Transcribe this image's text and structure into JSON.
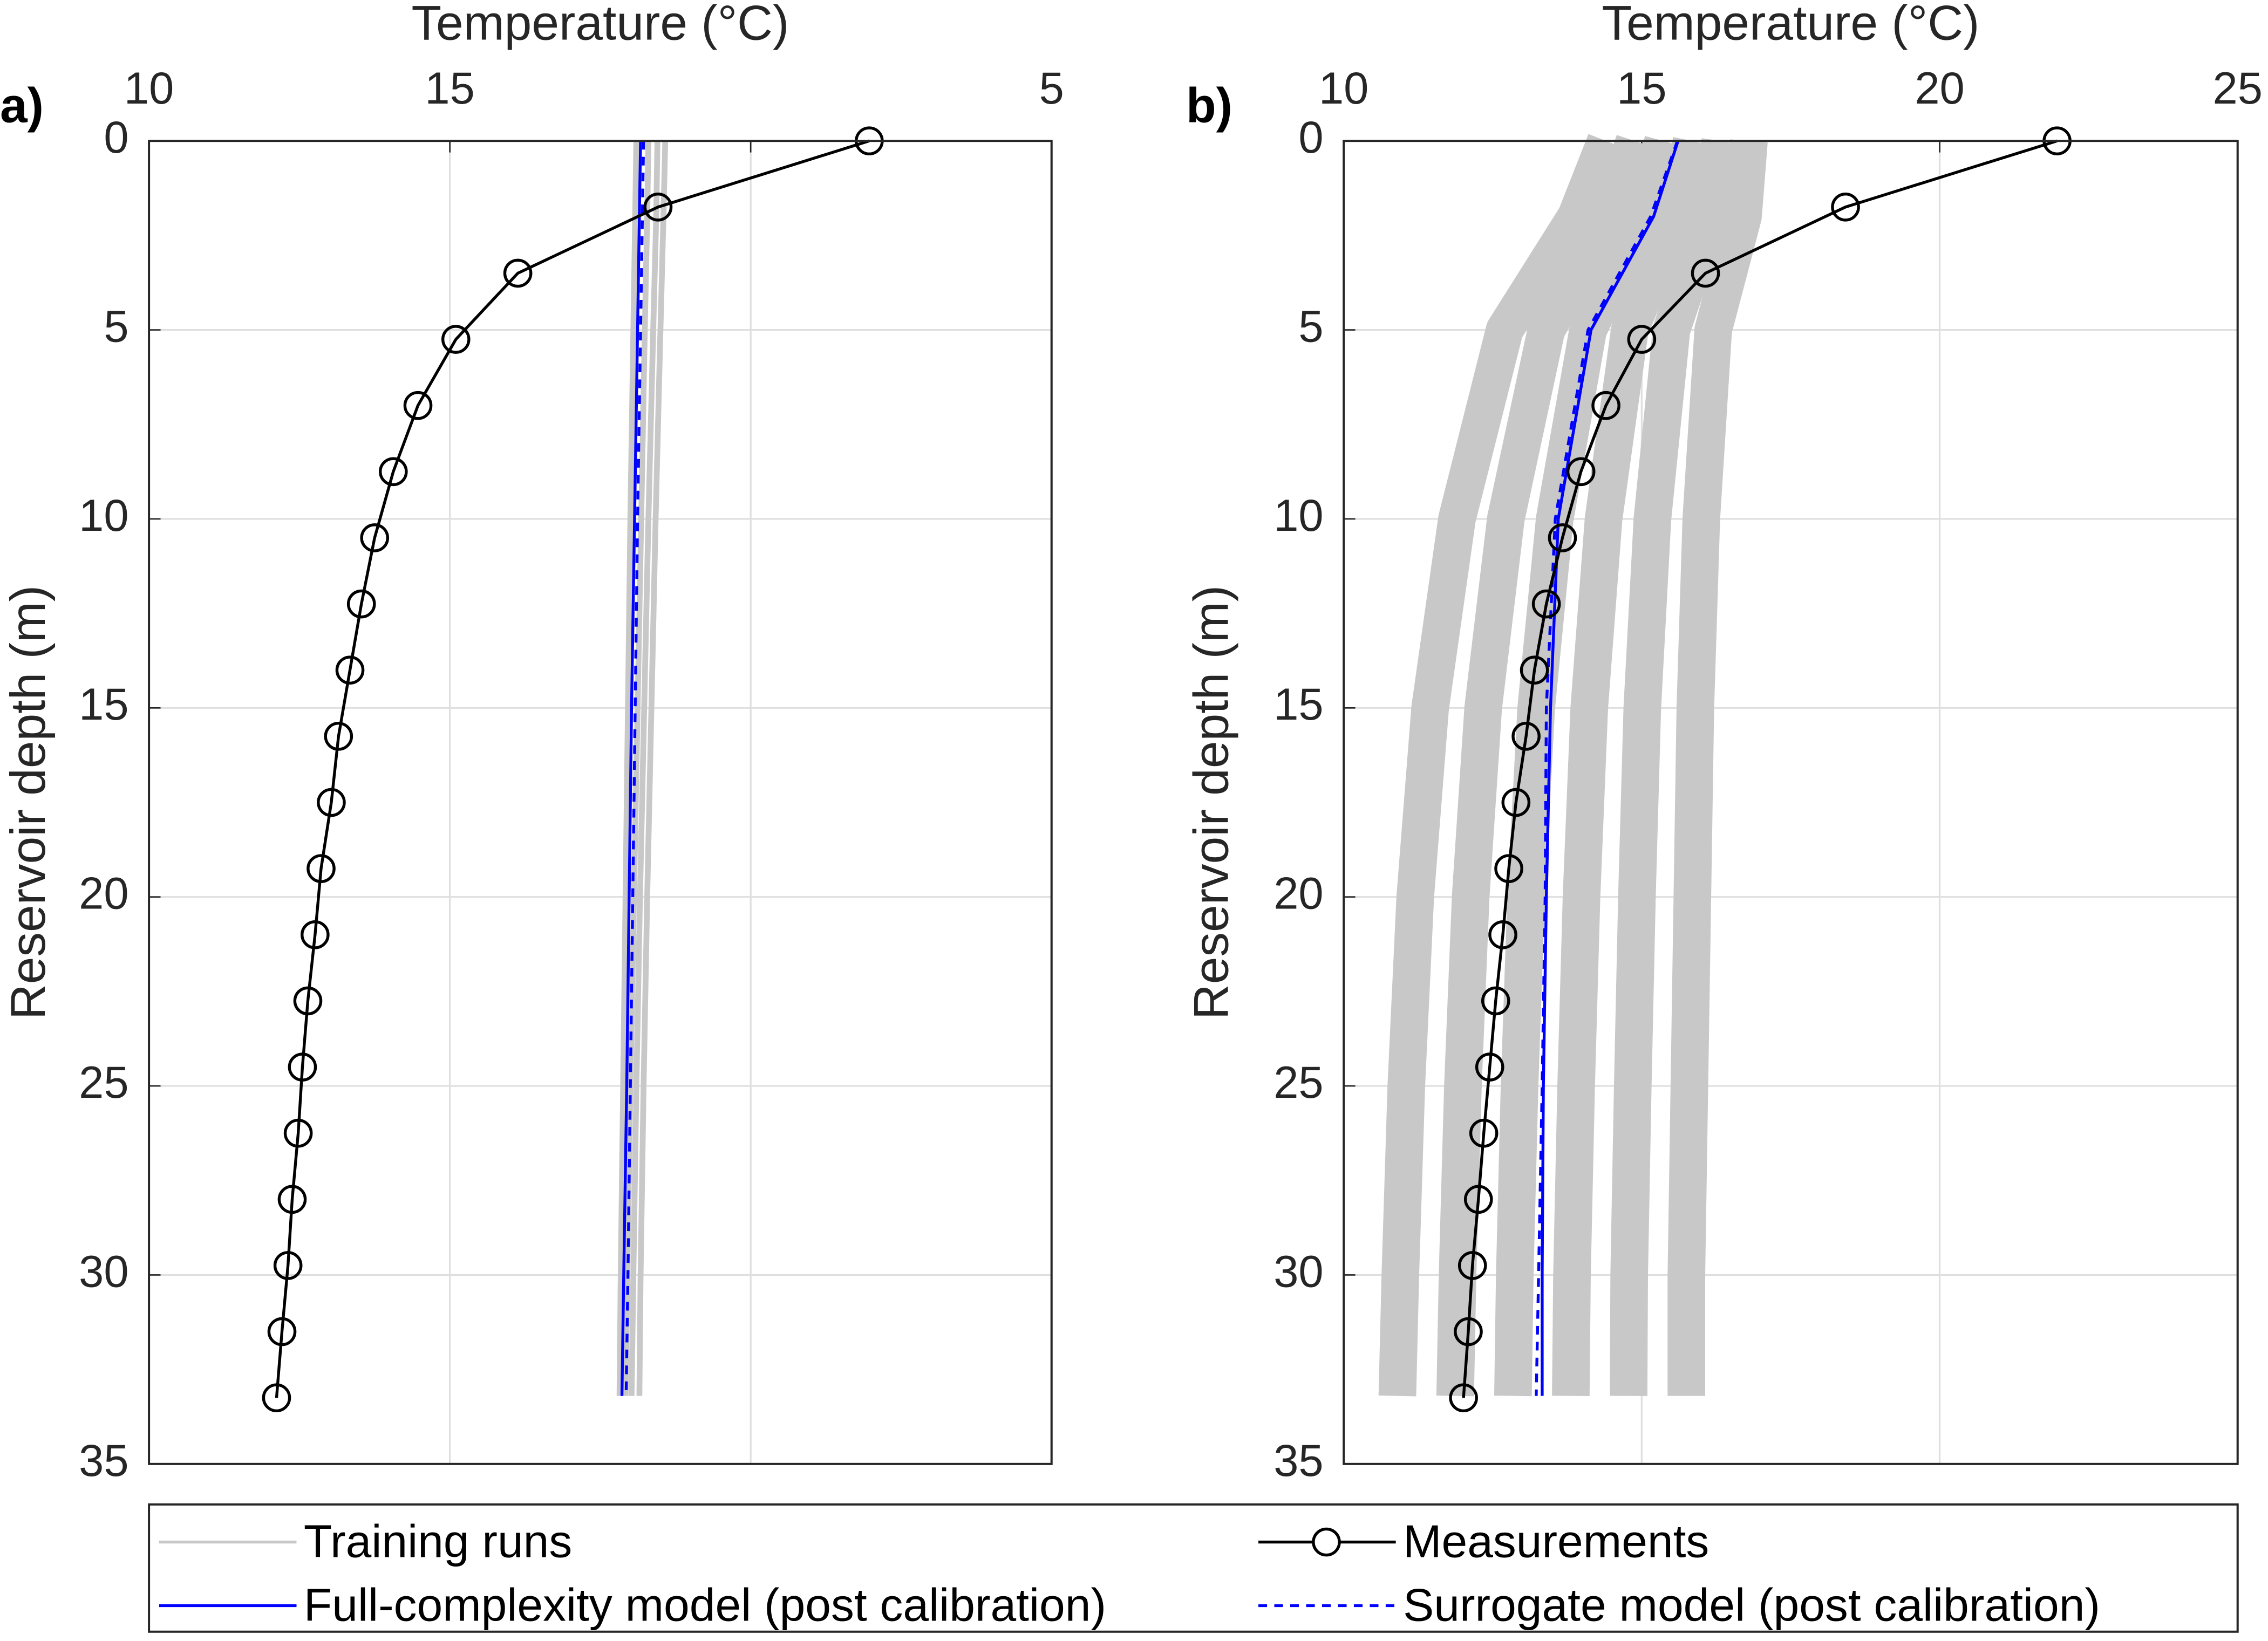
{
  "chart_data": [
    {
      "type": "line",
      "panel_label": "a)",
      "xlabel": "Temperature (°C)",
      "ylabel": "Reservoir depth (m)",
      "x_axis_position": "top",
      "y_reversed": true,
      "grid": true,
      "xlim": [
        10,
        25
      ],
      "xticks": [
        10,
        15,
        {
          "value": 20,
          "label": null
        },
        {
          "value": 25,
          "label": "5"
        }
      ],
      "ylim": [
        0,
        35
      ],
      "yticks": [
        0,
        5,
        10,
        15,
        20,
        25,
        30,
        35
      ],
      "series": [
        {
          "entry": 0,
          "depths": [
            0,
            2,
            5,
            10,
            15,
            20,
            25,
            30,
            33.2
          ],
          "runs": [
            [
              18.1,
              18.08,
              18.05,
              18.0,
              17.96,
              17.92,
              17.88,
              17.84,
              17.82
            ],
            [
              18.3,
              18.28,
              18.24,
              18.18,
              18.12,
              18.06,
              18.0,
              17.95,
              17.92
            ],
            [
              18.45,
              18.43,
              18.38,
              18.3,
              18.23,
              18.16,
              18.1,
              18.05,
              18.02
            ],
            [
              18.58,
              18.55,
              18.5,
              18.42,
              18.35,
              18.28,
              18.22,
              18.17,
              18.15
            ]
          ]
        },
        {
          "entry": 1,
          "depths": [
            0,
            2,
            5,
            10,
            15,
            20,
            25,
            30,
            33.2
          ],
          "values": [
            18.17,
            18.15,
            18.12,
            18.07,
            18.02,
            17.98,
            17.94,
            17.89,
            17.86
          ]
        },
        {
          "entry": 3,
          "depths": [
            0,
            2,
            5,
            10,
            15,
            20,
            25,
            30,
            33.2
          ],
          "values": [
            18.22,
            18.2,
            18.17,
            18.12,
            18.08,
            18.04,
            18.0,
            17.96,
            17.93
          ]
        },
        {
          "entry": 2,
          "depths": [
            0,
            1.75,
            3.5,
            5.25,
            7,
            8.75,
            10.5,
            12.25,
            14,
            15.75,
            17.5,
            19.25,
            21,
            22.75,
            24.5,
            26.25,
            28,
            29.75,
            31.5,
            33.25
          ],
          "values": [
            21.97,
            18.46,
            16.13,
            15.1,
            14.47,
            14.06,
            13.75,
            13.53,
            13.34,
            13.15,
            13.03,
            12.86,
            12.76,
            12.64,
            12.55,
            12.48,
            12.38,
            12.31,
            12.21,
            12.12
          ]
        }
      ]
    },
    {
      "type": "line",
      "panel_label": "b)",
      "xlabel": "Temperature (°C)",
      "ylabel": "Reservoir depth (m)",
      "x_axis_position": "top",
      "y_reversed": true,
      "grid": true,
      "xlim": [
        10,
        25
      ],
      "xticks": [
        10,
        15,
        20,
        25
      ],
      "ylim": [
        0,
        35
      ],
      "yticks": [
        0,
        5,
        10,
        15,
        20,
        25,
        30,
        35
      ],
      "series": [
        {
          "entry": 0,
          "depths": [
            0,
            2,
            5,
            10,
            15,
            20,
            25,
            30,
            33.2
          ],
          "runs": [
            [
              14.4,
              13.9,
              12.7,
              11.9,
              11.45,
              11.2,
              11.05,
              10.95,
              10.9
            ],
            [
              14.88,
              14.46,
              13.4,
              12.72,
              12.34,
              12.13,
              12.0,
              11.91,
              11.87
            ],
            [
              15.36,
              15.02,
              14.1,
              13.54,
              13.23,
              13.06,
              12.95,
              12.87,
              12.84
            ],
            [
              15.84,
              15.58,
              14.8,
              14.36,
              14.12,
              13.99,
              13.9,
              13.83,
              13.81
            ],
            [
              16.32,
              16.14,
              15.5,
              15.18,
              15.01,
              14.92,
              14.85,
              14.79,
              14.78
            ],
            [
              16.8,
              16.7,
              16.2,
              16.0,
              15.9,
              15.85,
              15.8,
              15.75,
              15.75
            ]
          ]
        },
        {
          "entry": 1,
          "depths": [
            0,
            2,
            5,
            10,
            15,
            20,
            25,
            30,
            33.2
          ],
          "values": [
            15.61,
            15.2,
            14.15,
            13.6,
            13.47,
            13.4,
            13.35,
            13.33,
            13.33
          ]
        },
        {
          "entry": 3,
          "depths": [
            0,
            2,
            5,
            10,
            15,
            20,
            25,
            30,
            33.2
          ],
          "values": [
            15.6,
            15.15,
            14.1,
            13.55,
            13.4,
            13.38,
            13.33,
            13.27,
            13.23
          ]
        },
        {
          "entry": 2,
          "depths": [
            0,
            1.75,
            3.5,
            5.25,
            7,
            8.75,
            10.5,
            12.25,
            14,
            15.75,
            17.5,
            19.25,
            21,
            22.75,
            24.5,
            26.25,
            28,
            29.75,
            31.5,
            33.25
          ],
          "values": [
            21.97,
            18.42,
            16.07,
            15.0,
            14.4,
            13.98,
            13.67,
            13.4,
            13.2,
            13.06,
            12.89,
            12.77,
            12.67,
            12.55,
            12.45,
            12.35,
            12.26,
            12.16,
            12.09,
            12.01
          ]
        }
      ]
    }
  ],
  "legend": {
    "location": "bottom",
    "entries": [
      {
        "name": "Training runs",
        "color": "#c8c8c8",
        "style": "solid"
      },
      {
        "name": "Full-complexity model (post calibration)",
        "color": "#0000ff",
        "style": "solid"
      },
      {
        "name": "Measurements",
        "color": "#000000",
        "style": "solid",
        "marker": "circle"
      },
      {
        "name": "Surrogate model (post calibration)",
        "color": "#0000ff",
        "style": "dashed"
      }
    ]
  }
}
